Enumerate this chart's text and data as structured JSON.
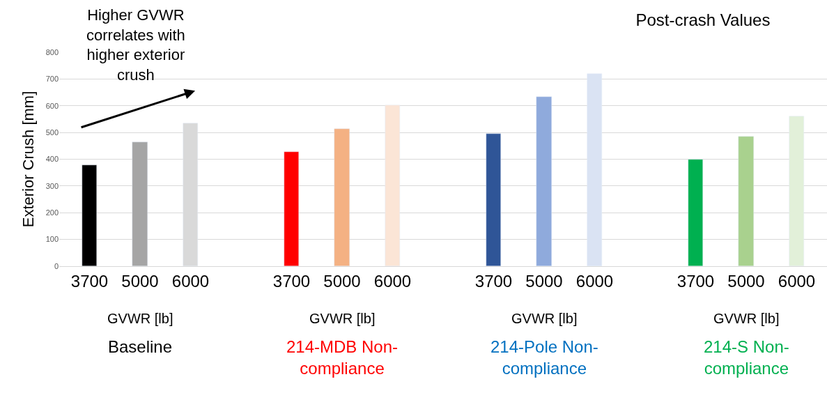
{
  "chart_data": {
    "type": "bar",
    "title": "Post-crash Values",
    "xlabel": "GVWR [lb]",
    "ylabel": "Exterior Crush [mm]",
    "categories": [
      "3700",
      "5000",
      "6000",
      null,
      "3700",
      "5000",
      "6000",
      null,
      "3700",
      "5000",
      "6000",
      null,
      "3700",
      "5000",
      "6000"
    ],
    "series": [
      {
        "values": [
          377,
          464,
          534,
          null,
          428,
          514,
          603,
          null,
          495,
          634,
          719,
          null,
          399,
          486,
          559
        ],
        "colors": [
          "#000000",
          "#a5a5a5",
          "#d9d9d9",
          null,
          "#ff0000",
          "#f4b183",
          "#fbe5d6",
          null,
          "#2f5597",
          "#8faadc",
          "#dae3f3",
          null,
          "#00b050",
          "#a9d18e",
          "#e2f0d9"
        ]
      }
    ],
    "ylim": [
      0,
      800
    ],
    "yticks": [
      0,
      100,
      200,
      300,
      400,
      500,
      600,
      700,
      800
    ],
    "grid": "y",
    "legend": false,
    "annotations": [
      "Higher GVWR\ncorrelates with\nhigher exterior\ncrush",
      "Baseline",
      "214-MDB Non-\ncompliance",
      "214-Pole Non-\ncompliance",
      "214-S Non-\ncompliance"
    ]
  }
}
